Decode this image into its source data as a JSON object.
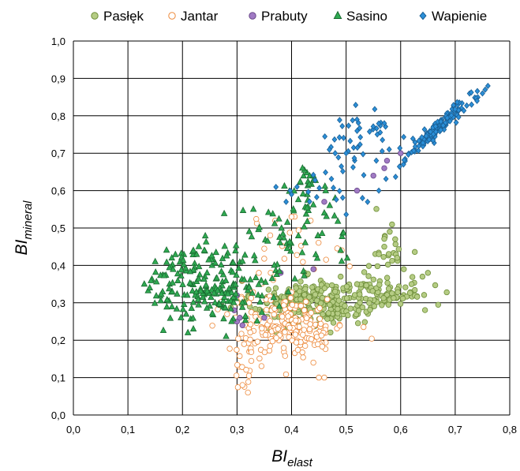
{
  "chart_data": {
    "type": "scatter",
    "title": "",
    "xlabel": {
      "main": "BI",
      "sub": "elast"
    },
    "ylabel": {
      "main": "BI",
      "sub": "mineral"
    },
    "xlim": [
      0.0,
      0.8
    ],
    "ylim": [
      0.0,
      1.0
    ],
    "x_ticks": [
      "0,0",
      "0,1",
      "0,2",
      "0,3",
      "0,4",
      "0,5",
      "0,6",
      "0,7",
      "0,8"
    ],
    "y_ticks": [
      "0,0",
      "0,1",
      "0,2",
      "0,3",
      "0,4",
      "0,5",
      "0,6",
      "0,7",
      "0,8",
      "0,9",
      "1,0"
    ],
    "grid": true,
    "legend_position": "top",
    "series": [
      {
        "name": "Pasłęk",
        "marker": "circle",
        "fill": "#b5cc84",
        "stroke": "#6f8f3a",
        "clusters": [
          {
            "cx": 0.43,
            "cy": 0.3,
            "sx": 0.05,
            "sy": 0.03,
            "n": 260
          },
          {
            "cx": 0.57,
            "cy": 0.32,
            "sx": 0.045,
            "sy": 0.025,
            "n": 90
          },
          {
            "cx": 0.57,
            "cy": 0.42,
            "sx": 0.03,
            "sy": 0.05,
            "n": 28
          }
        ],
        "points": [
          [
            0.65,
            0.38
          ],
          [
            0.64,
            0.37
          ],
          [
            0.58,
            0.49
          ],
          [
            0.59,
            0.47
          ],
          [
            0.57,
            0.45
          ],
          [
            0.56,
            0.43
          ],
          [
            0.49,
            0.37
          ],
          [
            0.52,
            0.35
          ],
          [
            0.48,
            0.33
          ],
          [
            0.62,
            0.35
          ]
        ]
      },
      {
        "name": "Jantar",
        "marker": "circle",
        "fill": "#ffffff",
        "stroke": "#ed8a3c",
        "clusters": [
          {
            "cx": 0.4,
            "cy": 0.24,
            "sx": 0.05,
            "sy": 0.04,
            "n": 190
          },
          {
            "cx": 0.32,
            "cy": 0.16,
            "sx": 0.018,
            "sy": 0.045,
            "n": 28
          },
          {
            "cx": 0.4,
            "cy": 0.46,
            "sx": 0.05,
            "sy": 0.04,
            "n": 22
          }
        ],
        "points": [
          [
            0.32,
            0.06
          ],
          [
            0.31,
            0.08
          ],
          [
            0.45,
            0.1
          ],
          [
            0.46,
            0.1
          ],
          [
            0.44,
            0.14
          ],
          [
            0.37,
            0.52
          ],
          [
            0.4,
            0.53
          ],
          [
            0.34,
            0.38
          ],
          [
            0.31,
            0.36
          ],
          [
            0.3,
            0.3
          ]
        ]
      },
      {
        "name": "Prabuty",
        "marker": "circle",
        "fill": "#a07ac4",
        "stroke": "#6a4a8a",
        "clusters": [],
        "points": [
          [
            0.295,
            0.28
          ],
          [
            0.3,
            0.32
          ],
          [
            0.3,
            0.25
          ],
          [
            0.305,
            0.26
          ],
          [
            0.31,
            0.24
          ],
          [
            0.35,
            0.26
          ],
          [
            0.38,
            0.38
          ],
          [
            0.44,
            0.39
          ],
          [
            0.46,
            0.57
          ],
          [
            0.55,
            0.64
          ],
          [
            0.52,
            0.6
          ],
          [
            0.57,
            0.66
          ],
          [
            0.6,
            0.7
          ],
          [
            0.575,
            0.68
          ]
        ]
      },
      {
        "name": "Sasino",
        "marker": "triangle",
        "fill": "#2faa52",
        "stroke": "#1a6b31",
        "clusters": [
          {
            "cx": 0.25,
            "cy": 0.35,
            "sx": 0.055,
            "sy": 0.05,
            "n": 200
          },
          {
            "cx": 0.4,
            "cy": 0.47,
            "sx": 0.06,
            "sy": 0.06,
            "n": 60
          },
          {
            "cx": 0.43,
            "cy": 0.61,
            "sx": 0.025,
            "sy": 0.03,
            "n": 22
          }
        ],
        "points": [
          [
            0.13,
            0.35
          ],
          [
            0.14,
            0.34
          ],
          [
            0.15,
            0.41
          ],
          [
            0.21,
            0.22
          ],
          [
            0.22,
            0.23
          ],
          [
            0.23,
            0.45
          ],
          [
            0.22,
            0.44
          ],
          [
            0.24,
            0.44
          ],
          [
            0.28,
            0.21
          ],
          [
            0.29,
            0.25
          ],
          [
            0.33,
            0.55
          ],
          [
            0.47,
            0.56
          ],
          [
            0.44,
            0.64
          ],
          [
            0.48,
            0.58
          ],
          [
            0.49,
            0.44
          ],
          [
            0.46,
            0.54
          ],
          [
            0.42,
            0.66
          ]
        ]
      },
      {
        "name": "Wapienie",
        "marker": "diamond",
        "fill": "#2b8fd8",
        "stroke": "#1a5f94",
        "clusters": [
          {
            "axis": [
              0.55,
              0.62,
              0.76,
              0.88
            ],
            "t_sd": 0.13,
            "off_sd": 0.018,
            "n": 140
          },
          {
            "cx": 0.55,
            "cy": 0.74,
            "sx": 0.04,
            "sy": 0.04,
            "n": 45
          },
          {
            "cx": 0.46,
            "cy": 0.62,
            "sx": 0.04,
            "sy": 0.04,
            "n": 20
          }
        ],
        "points": [
          [
            0.76,
            0.88
          ],
          [
            0.755,
            0.87
          ],
          [
            0.75,
            0.86
          ],
          [
            0.74,
            0.84
          ],
          [
            0.73,
            0.83
          ],
          [
            0.39,
            0.57
          ],
          [
            0.4,
            0.59
          ],
          [
            0.41,
            0.61
          ],
          [
            0.52,
            0.79
          ],
          [
            0.57,
            0.78
          ],
          [
            0.48,
            0.7
          ],
          [
            0.5,
            0.7
          ],
          [
            0.53,
            0.58
          ],
          [
            0.56,
            0.6
          ]
        ]
      }
    ]
  }
}
